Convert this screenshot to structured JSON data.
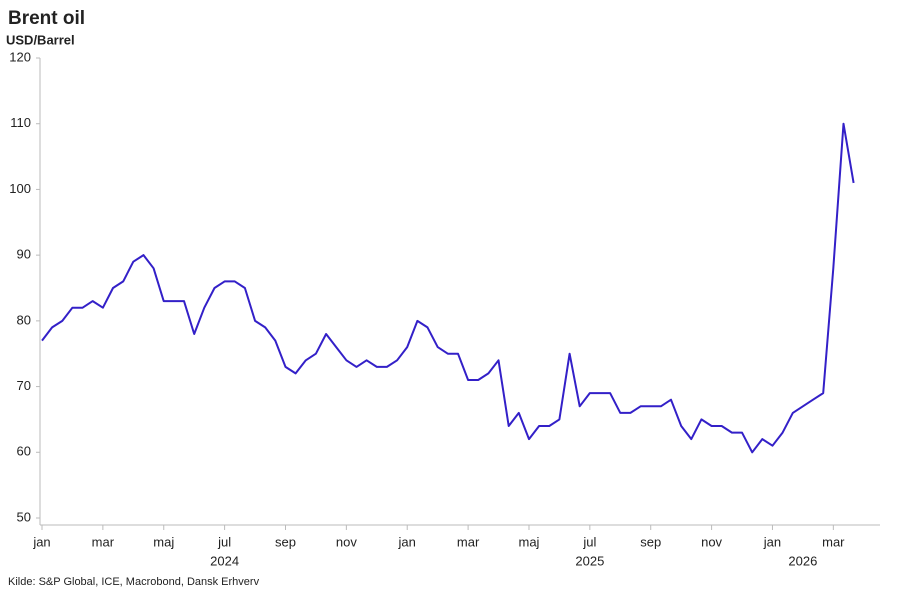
{
  "chart_data": {
    "type": "line",
    "title": "Brent oil",
    "subtitle": "USD/Barrel",
    "source": "Kilde: S&P Global, ICE, Macrobond, Dansk Erhverv",
    "categories": [
      "jan",
      null,
      null,
      null,
      null,
      null,
      "mar",
      null,
      null,
      null,
      null,
      null,
      "maj",
      null,
      null,
      null,
      null,
      null,
      "jul",
      null,
      null,
      null,
      null,
      null,
      "sep",
      null,
      null,
      null,
      null,
      null,
      "nov",
      null,
      null,
      null,
      null,
      null,
      "jan",
      null,
      null,
      null,
      null,
      null,
      "mar",
      null,
      null,
      null,
      null,
      null,
      "maj",
      null,
      null,
      null,
      null,
      null,
      "jul",
      null,
      null,
      null,
      null,
      null,
      "sep",
      null,
      null,
      null,
      null,
      null,
      "nov",
      null,
      null,
      null,
      null,
      null,
      "jan",
      null,
      null,
      null,
      null,
      null,
      "mar",
      null,
      null
    ],
    "year_labels": [
      null,
      null,
      null,
      null,
      null,
      null,
      null,
      null,
      null,
      null,
      null,
      null,
      null,
      null,
      null,
      null,
      null,
      null,
      "2024",
      null,
      null,
      null,
      null,
      null,
      null,
      null,
      null,
      null,
      null,
      null,
      null,
      null,
      null,
      null,
      null,
      null,
      null,
      null,
      null,
      null,
      null,
      null,
      null,
      null,
      null,
      null,
      null,
      null,
      null,
      null,
      null,
      null,
      null,
      null,
      "2025",
      null,
      null,
      null,
      null,
      null,
      null,
      null,
      null,
      null,
      null,
      null,
      null,
      null,
      null,
      null,
      null,
      null,
      null,
      null,
      null,
      "2026",
      null,
      null,
      null,
      null,
      null
    ],
    "values": [
      77,
      79,
      80,
      82,
      82,
      83,
      82,
      85,
      86,
      89,
      90,
      88,
      83,
      83,
      83,
      78,
      82,
      85,
      86,
      86,
      85,
      80,
      79,
      77,
      73,
      72,
      74,
      75,
      78,
      76,
      74,
      73,
      74,
      73,
      73,
      74,
      76,
      80,
      79,
      76,
      75,
      75,
      71,
      71,
      72,
      74,
      64,
      66,
      62,
      64,
      64,
      65,
      75,
      67,
      69,
      69,
      69,
      66,
      66,
      67,
      67,
      67,
      68,
      64,
      62,
      65,
      64,
      64,
      63,
      63,
      60,
      62,
      61,
      63,
      66,
      67,
      68,
      69,
      88,
      110,
      101
    ],
    "color": "#3320c8",
    "ylim": [
      50,
      120
    ],
    "yticks": [
      50,
      60,
      70,
      80,
      90,
      100,
      110,
      120
    ],
    "grid": false
  }
}
